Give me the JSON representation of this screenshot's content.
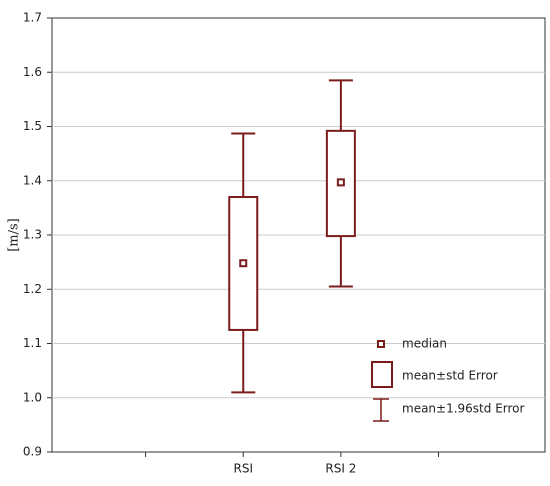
{
  "chart_data": {
    "type": "box",
    "ylabel": "[m/s]",
    "categories": [
      "RSI",
      "RSI 2"
    ],
    "median": [
      1.248,
      1.397
    ],
    "box_low": [
      1.125,
      1.298
    ],
    "box_high": [
      1.37,
      1.492
    ],
    "whisker_low": [
      1.01,
      1.205
    ],
    "whisker_high": [
      1.487,
      1.585
    ],
    "color": "#7b1c1c",
    "legend": [
      "median",
      "mean±std Error",
      "mean±1.96std Error"
    ],
    "ylim": [
      0.9,
      1.7
    ],
    "yticks": [
      0.9,
      {
        "value": 1,
        "label": "1.0"
      },
      1.1,
      1.2,
      1.3,
      1.4,
      1.5,
      1.6,
      1.7
    ],
    "grid": true
  }
}
